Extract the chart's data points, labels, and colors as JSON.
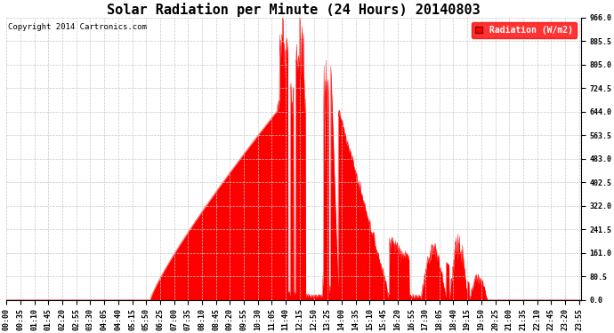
{
  "title": "Solar Radiation per Minute (24 Hours) 20140803",
  "copyright": "Copyright 2014 Cartronics.com",
  "legend_label": "Radiation (W/m2)",
  "ylim": [
    0.0,
    966.0
  ],
  "yticks": [
    0.0,
    80.5,
    161.0,
    241.5,
    322.0,
    402.5,
    483.0,
    563.5,
    644.0,
    724.5,
    805.0,
    885.5,
    966.0
  ],
  "fill_color": "#FF0000",
  "background_color": "#FFFFFF",
  "grid_color": "#C8C8C8",
  "title_fontsize": 11,
  "copyright_fontsize": 6.5,
  "tick_fontsize": 6,
  "legend_fontsize": 7,
  "tick_step_minutes": 35
}
